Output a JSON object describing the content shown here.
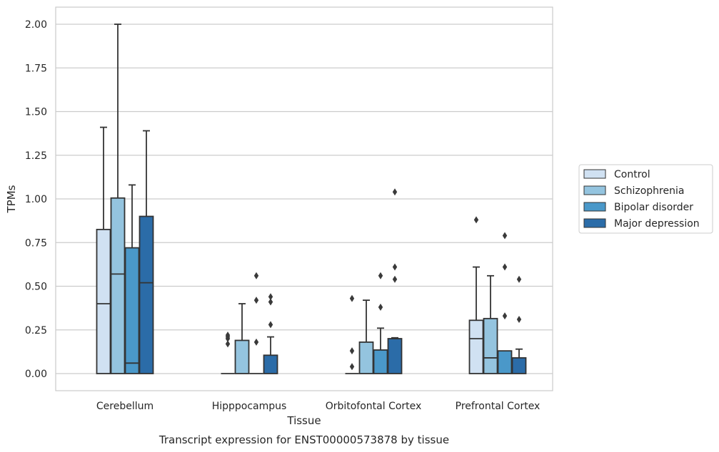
{
  "caption": "Transcript expression for ENST00000573878 by tissue",
  "chart_data": {
    "type": "box",
    "xlabel": "Tissue",
    "ylabel": "TPMs",
    "ylim": [
      -0.1,
      2.1
    ],
    "yticks": [
      "0.00",
      "0.25",
      "0.50",
      "0.75",
      "1.00",
      "1.25",
      "1.50",
      "1.75",
      "2.00"
    ],
    "grid": true,
    "legend_position": "right",
    "categories": [
      "Cerebellum",
      "Hipppocampus",
      "Orbitofontal Cortex",
      "Prefrontal Cortex"
    ],
    "series": [
      {
        "name": "Control",
        "color": "#d0e1f2",
        "boxes": [
          {
            "q1": 0,
            "median": 0.4,
            "q3": 0.825,
            "whisker_low": 0,
            "whisker_high": 1.41,
            "outliers": []
          },
          {
            "q1": 0,
            "median": 0,
            "q3": 0,
            "whisker_low": 0,
            "whisker_high": 0,
            "outliers": [
              0.17,
              0.2,
              0.21,
              0.22
            ]
          },
          {
            "q1": 0,
            "median": 0,
            "q3": 0,
            "whisker_low": 0,
            "whisker_high": 0,
            "outliers": [
              0.04,
              0.13,
              0.43
            ]
          },
          {
            "q1": 0,
            "median": 0.2,
            "q3": 0.305,
            "whisker_low": 0,
            "whisker_high": 0.61,
            "outliers": [
              0.88
            ]
          }
        ]
      },
      {
        "name": "Schizophrenia",
        "color": "#94c4df",
        "boxes": [
          {
            "q1": 0,
            "median": 0.57,
            "q3": 1.005,
            "whisker_low": 0,
            "whisker_high": 2.0,
            "outliers": []
          },
          {
            "q1": 0,
            "median": 0,
            "q3": 0.19,
            "whisker_low": 0,
            "whisker_high": 0.4,
            "outliers": []
          },
          {
            "q1": 0,
            "median": 0,
            "q3": 0.18,
            "whisker_low": 0,
            "whisker_high": 0.42,
            "outliers": []
          },
          {
            "q1": 0,
            "median": 0.09,
            "q3": 0.315,
            "whisker_low": 0,
            "whisker_high": 0.56,
            "outliers": []
          }
        ]
      },
      {
        "name": "Bipolar disorder",
        "color": "#4a98c9",
        "boxes": [
          {
            "q1": 0,
            "median": 0.06,
            "q3": 0.72,
            "whisker_low": 0,
            "whisker_high": 1.08,
            "outliers": []
          },
          {
            "q1": 0,
            "median": 0,
            "q3": 0,
            "whisker_low": 0,
            "whisker_high": 0,
            "outliers": [
              0.18,
              0.42,
              0.56
            ]
          },
          {
            "q1": 0,
            "median": 0,
            "q3": 0.135,
            "whisker_low": 0,
            "whisker_high": 0.26,
            "outliers": [
              0.38,
              0.56
            ]
          },
          {
            "q1": 0,
            "median": 0,
            "q3": 0.13,
            "whisker_low": 0,
            "whisker_high": 0.13,
            "outliers": [
              0.33,
              0.61,
              0.79
            ]
          }
        ]
      },
      {
        "name": "Major depression",
        "color": "#2b6ca8",
        "boxes": [
          {
            "q1": 0,
            "median": 0.52,
            "q3": 0.9,
            "whisker_low": 0,
            "whisker_high": 1.39,
            "outliers": []
          },
          {
            "q1": 0,
            "median": 0,
            "q3": 0.105,
            "whisker_low": 0,
            "whisker_high": 0.21,
            "outliers": [
              0.28,
              0.41,
              0.44
            ]
          },
          {
            "q1": 0,
            "median": 0,
            "q3": 0.2,
            "whisker_low": 0,
            "whisker_high": 0.205,
            "outliers": [
              0.54,
              0.61,
              1.04
            ]
          },
          {
            "q1": 0,
            "median": 0,
            "q3": 0.09,
            "whisker_low": 0,
            "whisker_high": 0.14,
            "outliers": [
              0.31,
              0.54
            ]
          }
        ]
      }
    ]
  }
}
